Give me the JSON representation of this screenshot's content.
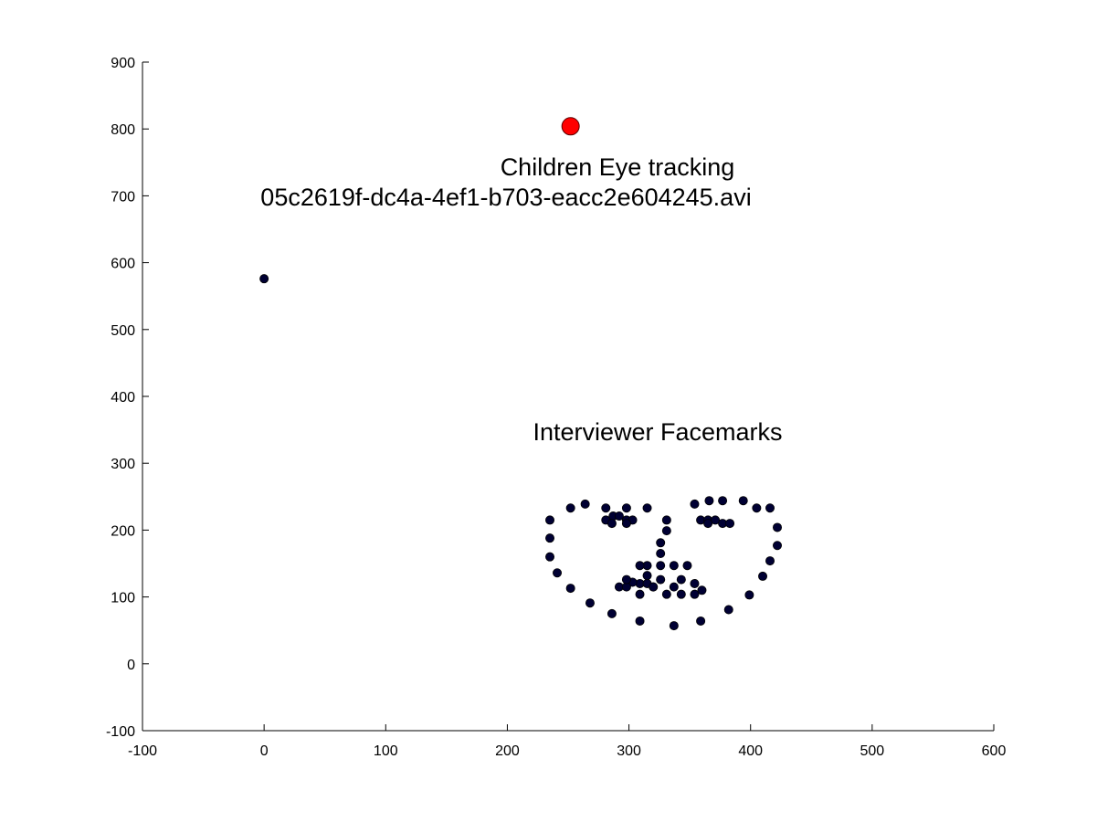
{
  "chart_data": {
    "type": "scatter",
    "title": "",
    "xlabel": "",
    "ylabel": "",
    "xlim": [
      -100,
      600
    ],
    "ylim": [
      -100,
      900
    ],
    "xticks": [
      -100,
      0,
      100,
      200,
      300,
      400,
      500,
      600
    ],
    "yticks": [
      -100,
      0,
      100,
      200,
      300,
      400,
      500,
      600,
      700,
      800,
      900
    ],
    "grid": false,
    "annotations": [
      {
        "text": "Children Eye tracking",
        "x": 302,
        "y": 740
      },
      {
        "text": "05c2619f-dc4a-4ef1-b703-eacc2e604245.avi",
        "x": 282,
        "y": 698
      },
      {
        "text": "Interviewer Facemarks",
        "x": 325,
        "y": 346
      }
    ],
    "series": [
      {
        "marker_color": "#000033",
        "points": [
          [
            0,
            576
          ],
          [
            235,
            215
          ],
          [
            235,
            188
          ],
          [
            235,
            160
          ],
          [
            241,
            136
          ],
          [
            252,
            113
          ],
          [
            268,
            91
          ],
          [
            286,
            75
          ],
          [
            309,
            64
          ],
          [
            337,
            57
          ],
          [
            359,
            64
          ],
          [
            382,
            81
          ],
          [
            399,
            103
          ],
          [
            410,
            131
          ],
          [
            416,
            154
          ],
          [
            422,
            177
          ],
          [
            422,
            204
          ],
          [
            252,
            233
          ],
          [
            264,
            239
          ],
          [
            281,
            233
          ],
          [
            298,
            233
          ],
          [
            315,
            233
          ],
          [
            354,
            239
          ],
          [
            366,
            244
          ],
          [
            377,
            244
          ],
          [
            394,
            244
          ],
          [
            405,
            233
          ],
          [
            416,
            233
          ],
          [
            331,
            215
          ],
          [
            331,
            199
          ],
          [
            326,
            181
          ],
          [
            326,
            165
          ],
          [
            326,
            147
          ],
          [
            337,
            147
          ],
          [
            348,
            147
          ],
          [
            315,
            147
          ],
          [
            309,
            147
          ],
          [
            309,
            120
          ],
          [
            315,
            120
          ],
          [
            320,
            115
          ],
          [
            326,
            126
          ],
          [
            337,
            115
          ],
          [
            343,
            126
          ],
          [
            354,
            120
          ],
          [
            360,
            110
          ],
          [
            354,
            104
          ],
          [
            343,
            104
          ],
          [
            331,
            104
          ],
          [
            320,
            115
          ],
          [
            303,
            122
          ],
          [
            292,
            115
          ],
          [
            298,
            115
          ],
          [
            298,
            126
          ],
          [
            309,
            104
          ],
          [
            315,
            132
          ],
          [
            281,
            215
          ],
          [
            287,
            221
          ],
          [
            292,
            221
          ],
          [
            298,
            215
          ],
          [
            303,
            215
          ],
          [
            298,
            210
          ],
          [
            286,
            210
          ],
          [
            359,
            215
          ],
          [
            365,
            215
          ],
          [
            371,
            215
          ],
          [
            377,
            210
          ],
          [
            383,
            210
          ],
          [
            365,
            210
          ]
        ]
      },
      {
        "marker_color": "#ff0000",
        "points": [
          [
            252,
            804
          ]
        ]
      }
    ]
  }
}
